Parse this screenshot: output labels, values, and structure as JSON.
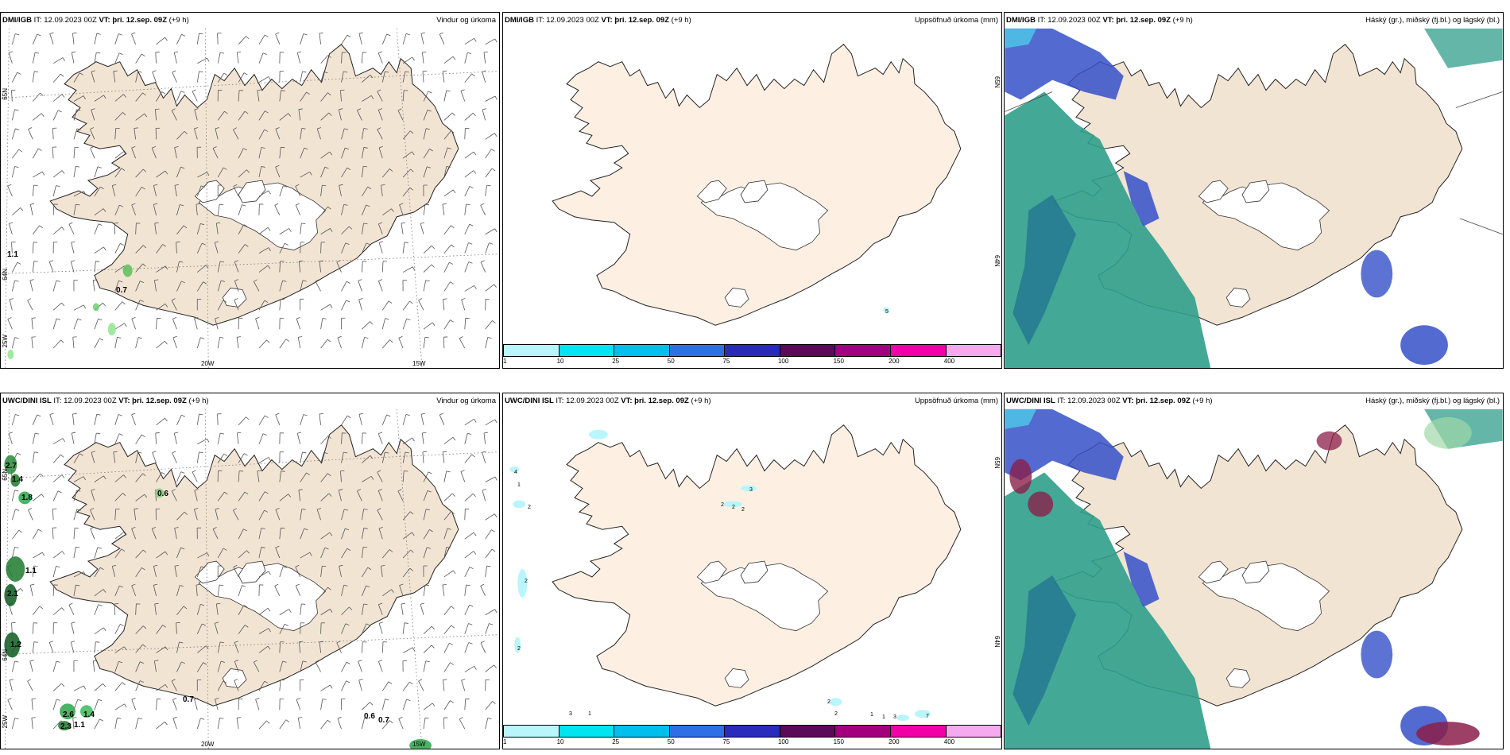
{
  "panels": [
    {
      "model": "DMI/IGB",
      "it_label": "IT:",
      "it": "12.09.2023 00Z",
      "vt_label": "VT:",
      "vt": "þri. 12.sep. 09Z",
      "lead": "(+9 h)",
      "title": "Vindur og úrkoma",
      "type": "wind",
      "coords": {
        "lon1": "20W",
        "lon2": "15W",
        "lat1": "65N",
        "lat2": "64N",
        "lonL": "25W"
      },
      "values": [
        "1.1",
        "0.7"
      ]
    },
    {
      "model": "DMI/IGB",
      "it_label": "IT:",
      "it": "12.09.2023 00Z",
      "vt_label": "VT:",
      "vt": "þri. 12.sep. 09Z",
      "lead": "(+9 h)",
      "title": "Uppsöfnuð úrkoma (mm)",
      "type": "precip",
      "coords": {
        "lat1": "65N",
        "lat2": "64N"
      },
      "values": [
        "5"
      ]
    },
    {
      "model": "DMI/IGB",
      "it_label": "IT:",
      "it": "12.09.2023 00Z",
      "vt_label": "VT:",
      "vt": "þri. 12.sep. 09Z",
      "lead": "(+9 h)",
      "title": "Háský (gr.), miðský (fj.bl.) og lágský (bl.)",
      "type": "cloud"
    },
    {
      "model": "UWC/DINI ISL",
      "it_label": "IT:",
      "it": "12.09.2023 00Z",
      "vt_label": "VT:",
      "vt": "þri. 12.sep. 09Z",
      "lead": "(+9 h)",
      "title": "Vindur og úrkoma",
      "type": "wind",
      "coords": {
        "lon1": "20W",
        "lon2": "15W",
        "lat1": "65N",
        "lat2": "64N",
        "lonL": "25W"
      },
      "values": [
        "2.7",
        "1.4",
        "1.8",
        "0.6",
        "1.1",
        "2.1",
        "1.2",
        "0.7",
        "2.6",
        "1.4",
        "2.3",
        "1.1",
        "0.6",
        "0.7"
      ]
    },
    {
      "model": "UWC/DINI ISL",
      "it_label": "IT:",
      "it": "12.09.2023 00Z",
      "vt_label": "VT:",
      "vt": "þri. 12.sep. 09Z",
      "lead": "(+9 h)",
      "title": "Uppsöfnuð úrkoma (mm)",
      "type": "precip",
      "coords": {
        "lat1": "65N",
        "lat2": "64N"
      },
      "values": [
        "4",
        "1",
        "2",
        "3",
        "2",
        "2",
        "2",
        "2",
        "2",
        "3",
        "1",
        "2",
        "2",
        "1",
        "1",
        "3",
        "7"
      ]
    },
    {
      "model": "UWC/DINI ISL",
      "it_label": "IT:",
      "it": "12.09.2023 00Z",
      "vt_label": "VT:",
      "vt": "þri. 12.sep. 09Z",
      "lead": "(+9 h)",
      "title": "Háský (gr.), miðský (fj.bl.) og lágský (bl.)",
      "type": "cloud"
    }
  ],
  "colorbar": {
    "colors": [
      "#b9f6fb",
      "#00e5f0",
      "#00bfec",
      "#2f6fe6",
      "#2a2bbd",
      "#5b0a59",
      "#a2007d",
      "#f000a6",
      "#f5aaef"
    ],
    "labels": [
      "1",
      "10",
      "25",
      "50",
      "75",
      "100",
      "150",
      "200",
      "400"
    ]
  },
  "colors": {
    "land": "#f2e4d3",
    "land_precip": "#fdf0e3",
    "sea_cloud": "#2f9e8b",
    "cloud_blue": "#3550c8",
    "cloud_cyan": "#4fc0e6"
  }
}
